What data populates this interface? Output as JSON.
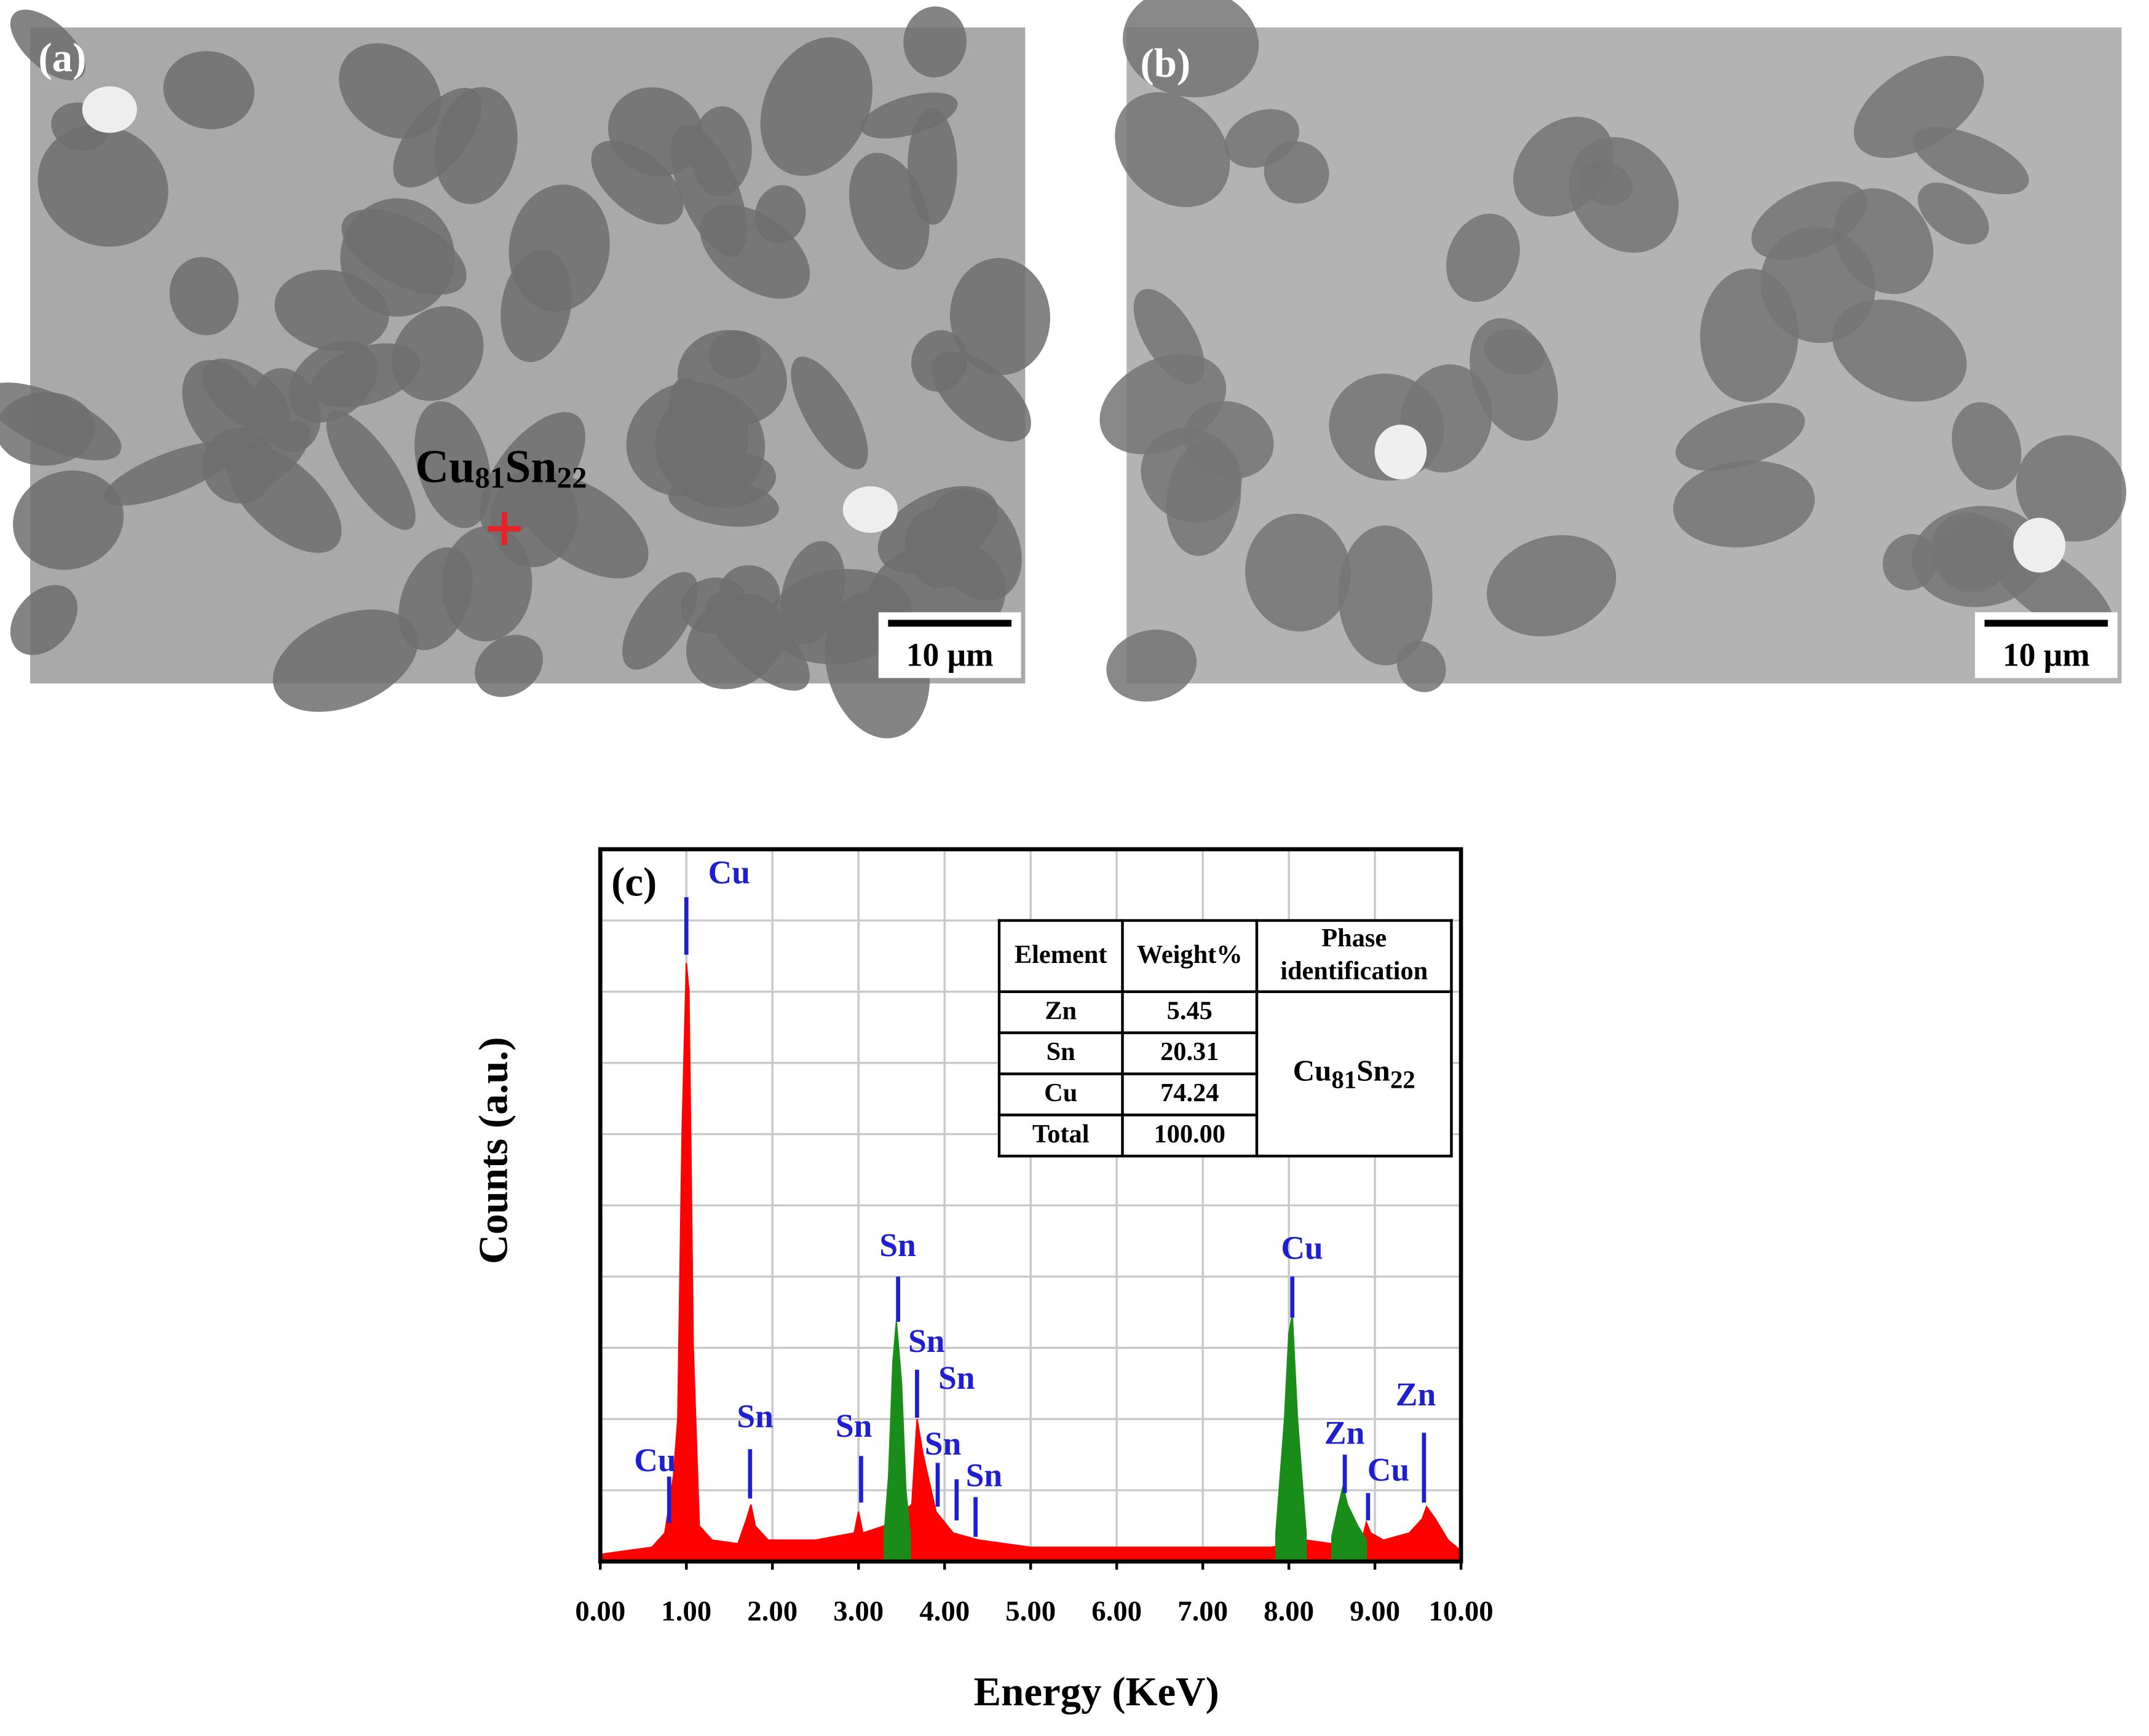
{
  "panels": [
    {
      "label": "(a)",
      "scale_bar": "10 μm",
      "annotation": {
        "parts": [
          "Cu",
          "81",
          "Sn",
          "22"
        ]
      }
    },
    {
      "label": "(b)",
      "scale_bar": "10 μm"
    }
  ],
  "chart_data": {
    "type": "area",
    "label": "(c)",
    "xlabel": "Energy (KeV)",
    "ylabel": "Counts (a.u.)",
    "xlim": [
      0,
      10
    ],
    "xticks": [
      {
        "value": 0,
        "label": "0.00"
      },
      {
        "value": 1,
        "label": "1.00"
      },
      {
        "value": 2,
        "label": "2.00"
      },
      {
        "value": 3,
        "label": "3.00"
      },
      {
        "value": 4,
        "label": "4.00"
      },
      {
        "value": 5,
        "label": "5.00"
      },
      {
        "value": 6,
        "label": "6.00"
      },
      {
        "value": 7,
        "label": "7.00"
      },
      {
        "value": 8,
        "label": "8.00"
      },
      {
        "value": 9,
        "label": "9.00"
      },
      {
        "value": 10,
        "label": "10.00"
      }
    ],
    "ylim": [
      0,
      10
    ],
    "yticks": [
      0,
      1,
      2,
      3,
      4,
      5,
      6,
      7,
      8,
      9,
      10
    ],
    "grid": true,
    "series": [
      {
        "color": "#ff0000",
        "x": [
          0,
          0.3,
          0.6,
          0.75,
          0.85,
          0.9,
          0.95,
          1.0,
          1.03,
          1.08,
          1.15,
          1.3,
          1.6,
          1.7,
          1.75,
          1.8,
          1.95,
          2.5,
          2.95,
          3.0,
          3.05,
          3.3,
          3.62,
          3.68,
          3.75,
          3.9,
          4.1,
          4.4,
          5,
          6,
          7,
          7.8,
          8.2,
          8.5,
          8.85,
          8.9,
          8.95,
          9.1,
          9.4,
          9.55,
          9.6,
          9.7,
          9.85,
          10
        ],
        "values": [
          0.1,
          0.15,
          0.2,
          0.4,
          1.2,
          2.0,
          6.0,
          8.4,
          8.0,
          3.0,
          0.5,
          0.3,
          0.25,
          0.6,
          0.8,
          0.5,
          0.3,
          0.3,
          0.4,
          0.7,
          0.4,
          0.5,
          0.8,
          2.0,
          1.5,
          0.7,
          0.4,
          0.3,
          0.2,
          0.2,
          0.2,
          0.2,
          0.3,
          0.25,
          0.3,
          0.55,
          0.4,
          0.3,
          0.4,
          0.6,
          0.77,
          0.6,
          0.3,
          0.15
        ]
      },
      {
        "color": "#1a8c1a",
        "x": [
          3.3,
          3.35,
          3.4,
          3.44,
          3.5,
          3.55,
          3.6
        ],
        "values": [
          0.4,
          1.2,
          2.8,
          3.37,
          2.5,
          1.0,
          0.4
        ]
      },
      {
        "color": "#1a8c1a",
        "x": [
          7.85,
          7.95,
          8.0,
          8.04,
          8.1,
          8.2
        ],
        "values": [
          0.4,
          2.0,
          3.2,
          3.46,
          2.0,
          0.4
        ]
      },
      {
        "color": "#1a8c1a",
        "x": [
          8.5,
          8.58,
          8.63,
          8.68,
          8.8,
          8.9
        ],
        "values": [
          0.35,
          0.8,
          1.06,
          0.8,
          0.5,
          0.3
        ]
      }
    ],
    "label_color": "#1f1fd0",
    "peak_labels": [
      {
        "text": "Cu",
        "x": 1.0
      },
      {
        "text": "Cu",
        "x": 0.8
      },
      {
        "text": "Sn",
        "x": 1.74
      },
      {
        "text": "Sn",
        "x": 3.03
      },
      {
        "text": "Sn",
        "x": 3.46
      },
      {
        "text": "Sn",
        "x": 3.68
      },
      {
        "text": "Sn",
        "x": 3.92
      },
      {
        "text": "Sn",
        "x": 4.14
      },
      {
        "text": "Sn",
        "x": 4.36
      },
      {
        "text": "Cu",
        "x": 8.04
      },
      {
        "text": "Zn",
        "x": 8.65
      },
      {
        "text": "Cu",
        "x": 8.92
      },
      {
        "text": "Zn",
        "x": 9.57
      }
    ]
  },
  "table": {
    "header": [
      "Element",
      "Weight%",
      "Phase identification"
    ],
    "rows": [
      [
        "Zn",
        "5.45"
      ],
      [
        "Sn",
        "20.31"
      ],
      [
        "Cu",
        "74.24"
      ],
      [
        "Total",
        "100.00"
      ]
    ],
    "phase": [
      "Cu",
      "81",
      "Sn",
      "22"
    ]
  }
}
